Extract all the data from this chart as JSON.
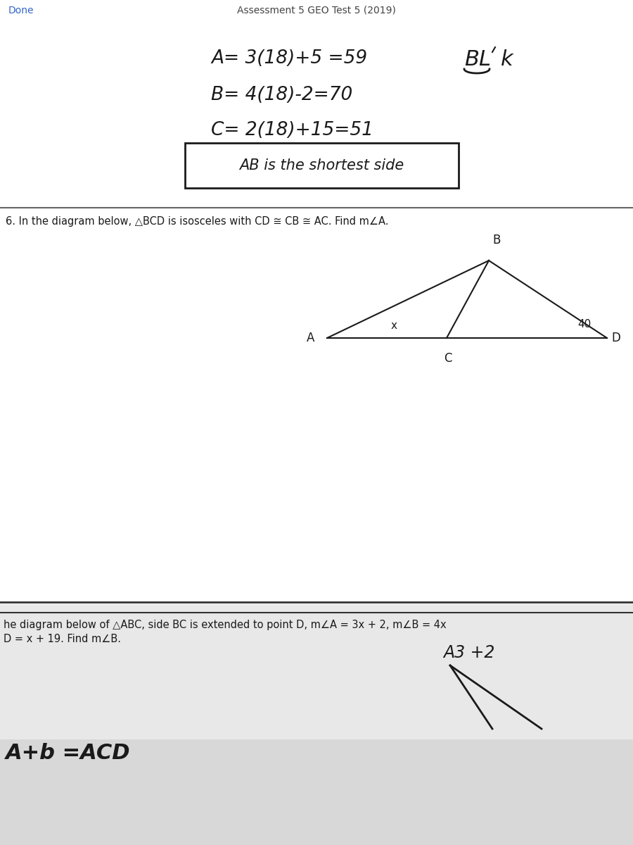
{
  "header_text": "Assessment 5 GEO Test 5 (2019)",
  "done_text": "Done",
  "line1": "A= 3(18)+5 =59",
  "line2": "B= 4(18)-2=70",
  "line3": "C= 2(18)+15=51",
  "boxed_text": "AB is the shortest side",
  "problem6_text": "6. In the diagram below, △BCD is isosceles with CD ≅ CB ≅ AC. Find m∠A.",
  "angle_label": "40",
  "problem7_text": "he diagram below of △ABC, side BC is extended to point D, m∠A = 3x + 2, m∠B = 4x",
  "problem7_line2": "D = x + 19. Find m∠B.",
  "annotation_text": "A3 +2",
  "equation_text": "A+b =ACD",
  "bg_top": "#f2f2f2",
  "bg_mid": "#e8e8e8",
  "bg_bot": "#d8d8d8",
  "text_color": "#1a1a1a",
  "done_color": "#3366cc"
}
